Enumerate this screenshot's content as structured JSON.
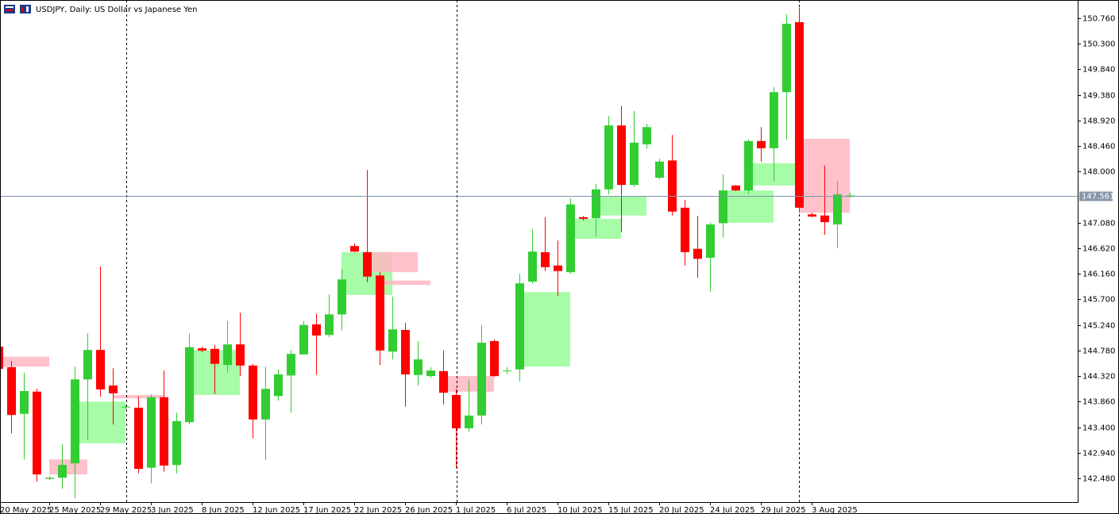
{
  "chart_data": {
    "type": "candlestick",
    "title": "USDJPY, Daily:  US Dollar vs Japanese Yen",
    "categories": [
      "20 May 2025",
      null,
      null,
      null,
      "25 May 2025",
      null,
      null,
      null,
      "29 May 2025",
      null,
      null,
      null,
      "3 Jun 2025",
      null,
      null,
      null,
      "8 Jun 2025",
      null,
      null,
      null,
      "12 Jun 2025",
      null,
      null,
      null,
      "17 Jun 2025",
      null,
      null,
      null,
      "22 Jun 2025",
      null,
      null,
      null,
      "26 Jun 2025",
      null,
      null,
      null,
      "1 Jul 2025",
      null,
      null,
      null,
      "6 Jul 2025",
      null,
      null,
      null,
      "10 Jul 2025",
      null,
      null,
      null,
      "15 Jul 2025",
      null,
      null,
      null,
      "20 Jul 2025",
      null,
      null,
      null,
      "24 Jul 2025",
      null,
      null,
      null,
      "29 Jul 2025",
      null,
      null,
      null,
      "3 Aug 2025",
      null,
      null,
      null
    ],
    "open": [
      144.85,
      144.48,
      143.64,
      144.04,
      142.47,
      142.49,
      142.75,
      144.26,
      144.79,
      144.15,
      143.76,
      143.75,
      142.67,
      143.94,
      142.72,
      143.49,
      144.82,
      144.81,
      144.52,
      144.89,
      144.51,
      143.54,
      143.96,
      144.33,
      144.71,
      145.25,
      145.06,
      145.43,
      146.66,
      146.55,
      146.13,
      144.76,
      145.15,
      144.34,
      144.32,
      144.41,
      143.98,
      143.38,
      143.61,
      144.95,
      144.41,
      144.44,
      146.02,
      146.55,
      146.31,
      146.19,
      147.18,
      147.16,
      147.68,
      148.83,
      147.76,
      148.49,
      147.89,
      148.2,
      147.35,
      146.61,
      146.45,
      147.07,
      147.75,
      147.66,
      148.55,
      148.42,
      149.43,
      150.69,
      147.23,
      147.21,
      147.05,
      147.56
    ],
    "high": [
      144.85,
      144.59,
      144.38,
      144.09,
      142.52,
      143.09,
      144.49,
      145.09,
      146.29,
      144.46,
      143.8,
      143.95,
      143.99,
      144.42,
      143.66,
      145.09,
      144.85,
      144.88,
      145.31,
      145.46,
      144.54,
      144.49,
      144.44,
      144.79,
      145.31,
      145.44,
      145.79,
      146.25,
      146.71,
      148.03,
      146.19,
      145.75,
      145.28,
      144.95,
      144.48,
      144.78,
      144.09,
      144.25,
      145.24,
      144.98,
      144.48,
      146.16,
      146.96,
      147.18,
      146.76,
      147.52,
      147.2,
      147.78,
      149.0,
      149.18,
      149.09,
      148.86,
      148.23,
      148.66,
      147.49,
      147.2,
      147.08,
      147.95,
      147.76,
      148.58,
      148.8,
      149.52,
      150.83,
      150.95,
      147.26,
      148.11,
      147.83,
      147.62
    ],
    "low": [
      144.45,
      143.29,
      142.82,
      142.42,
      142.45,
      142.29,
      142.12,
      143.17,
      143.95,
      143.45,
      143.72,
      142.57,
      142.39,
      142.6,
      142.57,
      143.45,
      144.75,
      144.0,
      144.38,
      144.32,
      143.2,
      142.81,
      143.88,
      143.66,
      144.71,
      144.34,
      145.02,
      145.14,
      146.55,
      146.01,
      144.52,
      144.62,
      143.77,
      144.15,
      144.29,
      143.81,
      142.67,
      143.32,
      143.45,
      144.31,
      144.36,
      144.22,
      145.98,
      146.21,
      145.76,
      146.16,
      147.12,
      146.83,
      147.59,
      146.91,
      147.72,
      148.41,
      147.86,
      147.21,
      146.31,
      146.09,
      145.84,
      146.81,
      147.65,
      147.6,
      148.18,
      147.82,
      148.58,
      147.26,
      147.18,
      146.86,
      146.62,
      147.53
    ],
    "close": [
      144.45,
      143.62,
      144.05,
      142.55,
      142.49,
      142.72,
      144.26,
      144.79,
      144.08,
      144.01,
      143.77,
      142.65,
      143.94,
      142.71,
      143.51,
      144.84,
      144.78,
      144.54,
      144.89,
      144.51,
      143.54,
      144.09,
      144.35,
      144.72,
      145.24,
      145.05,
      145.43,
      146.06,
      146.56,
      146.11,
      144.78,
      145.16,
      144.35,
      144.62,
      144.42,
      144.02,
      143.38,
      143.61,
      144.92,
      144.32,
      144.42,
      145.99,
      146.56,
      146.28,
      146.21,
      147.41,
      147.15,
      147.68,
      148.83,
      147.76,
      148.52,
      148.8,
      148.18,
      147.28,
      146.55,
      146.43,
      147.05,
      147.66,
      147.66,
      148.55,
      148.42,
      149.43,
      150.66,
      147.35,
      147.19,
      147.09,
      147.59,
      147.57
    ],
    "up_color": "#32cd32",
    "down_color": "#ff0000",
    "zones": [
      {
        "start": 0,
        "end": 4,
        "low": 144.49,
        "high": 144.67,
        "color": "#ffb6c1"
      },
      {
        "start": 4,
        "end": 7,
        "low": 142.55,
        "high": 142.82,
        "color": "#ffb6c1"
      },
      {
        "start": 6,
        "end": 10,
        "low": 143.11,
        "high": 143.86,
        "color": "#98fb98"
      },
      {
        "start": 9,
        "end": 13,
        "low": 143.92,
        "high": 143.98,
        "color": "#ffb6c1"
      },
      {
        "start": 15,
        "end": 19,
        "low": 143.98,
        "high": 144.79,
        "color": "#98fb98"
      },
      {
        "start": 27,
        "end": 31,
        "low": 145.78,
        "high": 146.55,
        "color": "#98fb98"
      },
      {
        "start": 29,
        "end": 33,
        "low": 146.19,
        "high": 146.55,
        "color": "#ffb6c1"
      },
      {
        "start": 30,
        "end": 34,
        "low": 145.96,
        "high": 146.04,
        "color": "#ffb6c1"
      },
      {
        "start": 35,
        "end": 39,
        "low": 144.04,
        "high": 144.32,
        "color": "#ffb6c1"
      },
      {
        "start": 41,
        "end": 45,
        "low": 144.49,
        "high": 145.83,
        "color": "#98fb98"
      },
      {
        "start": 45,
        "end": 49,
        "low": 146.79,
        "high": 147.15,
        "color": "#98fb98"
      },
      {
        "start": 47,
        "end": 51,
        "low": 147.21,
        "high": 147.56,
        "color": "#98fb98"
      },
      {
        "start": 57,
        "end": 61,
        "low": 147.08,
        "high": 147.66,
        "color": "#98fb98"
      },
      {
        "start": 59,
        "end": 63,
        "low": 147.75,
        "high": 148.15,
        "color": "#98fb98"
      },
      {
        "start": 63,
        "end": 67,
        "low": 147.26,
        "high": 148.59,
        "color": "#ffb6c1"
      }
    ],
    "last_price": 147.561,
    "ylim": [
      142.052,
      151.088
    ],
    "yticks": [
      {
        "value": 142.48,
        "label": "142.480"
      },
      {
        "value": 142.94,
        "label": "142.940"
      },
      {
        "value": 143.4,
        "label": "143.400"
      },
      {
        "value": 143.86,
        "label": "143.860"
      },
      {
        "value": 144.32,
        "label": "144.320"
      },
      {
        "value": 144.78,
        "label": "144.780"
      },
      {
        "value": 145.24,
        "label": "145.240"
      },
      {
        "value": 145.7,
        "label": "145.700"
      },
      {
        "value": 146.16,
        "label": "146.160"
      },
      {
        "value": 146.62,
        "label": "146.620"
      },
      {
        "value": 147.08,
        "label": "147.080"
      },
      {
        "value": 148.0,
        "label": "148.000"
      },
      {
        "value": 148.46,
        "label": "148.460"
      },
      {
        "value": 148.92,
        "label": "148.920"
      },
      {
        "value": 149.38,
        "label": "149.380"
      },
      {
        "value": 149.84,
        "label": "149.840"
      },
      {
        "value": 150.3,
        "label": "150.300"
      },
      {
        "value": 150.76,
        "label": "150.760"
      }
    ]
  }
}
